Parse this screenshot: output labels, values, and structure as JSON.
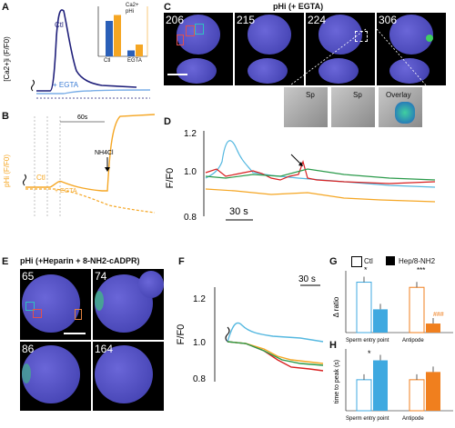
{
  "panels": {
    "A": {
      "label": "A",
      "ylabel": "[Ca2+]i (F/F0)",
      "ctl": "Ctl",
      "egta": "+ EGTA",
      "inset": {
        "legend": [
          "Ca2+",
          "pHi"
        ],
        "ylabel_left": "[Ca2+]i (F/F0)",
        "ylabel_right": "pHi (F/F0)",
        "cats": [
          "Ctl",
          "EGTA"
        ]
      }
    },
    "B": {
      "label": "B",
      "ylabel": "pHi (F/F0)",
      "ctl": "Ctl",
      "egta": "+ EGTA",
      "time": "60s",
      "nh4cl": "NH4Cl"
    },
    "C": {
      "label": "C",
      "title": "pHi (+ EGTA)",
      "frames": [
        "206",
        "215",
        "224",
        "306"
      ],
      "zoom": [
        "Sp",
        "Sp",
        "Overlay"
      ]
    },
    "D": {
      "label": "D",
      "ylabel": "F/F0",
      "yticks": [
        "1.2",
        "1.0",
        "0.8"
      ],
      "scale": "30 s"
    },
    "E": {
      "label": "E",
      "title": "pHi (+Heparin + 8-NH2-cADPR)",
      "frames": [
        "65",
        "74",
        "86",
        "164"
      ]
    },
    "F": {
      "label": "F",
      "ylabel": "F/F0",
      "yticks": [
        "1.2",
        "1.0",
        "0.8"
      ],
      "scale": "30 s"
    },
    "G": {
      "label": "G",
      "legend": [
        "Ctl",
        "Hep/8-NH2"
      ],
      "ylabel": "Δ ratio",
      "cats": [
        "Sperm entry point",
        "Antipode"
      ],
      "sig": [
        "*",
        "***",
        "###"
      ]
    },
    "H": {
      "label": "H",
      "ylabel": "time to peak (s)",
      "cats": [
        "Sperm entry point",
        "Antipode"
      ],
      "sig": [
        "*"
      ]
    }
  },
  "colors": {
    "blue": "#1f1f7a",
    "orange": "#f5a623",
    "ctl_bar": "#ffffff",
    "treat_bar_G": "#3fa9e0",
    "treat_bar_G2": "#f07f1e"
  },
  "chart_data": [
    {
      "type": "bar",
      "panel": "G",
      "categories": [
        "Sperm entry point",
        "Antipode"
      ],
      "series": [
        {
          "name": "Ctl",
          "values": [
            0.39,
            0.35
          ]
        },
        {
          "name": "Hep/8-NH2",
          "values": [
            0.18,
            0.07
          ]
        }
      ],
      "ylabel": "Δ ratio"
    },
    {
      "type": "bar",
      "panel": "H",
      "categories": [
        "Sperm entry point",
        "Antipode"
      ],
      "series": [
        {
          "name": "Ctl",
          "values": [
            16,
            16
          ]
        },
        {
          "name": "Hep/8-NH2",
          "values": [
            26,
            20
          ]
        }
      ],
      "ylabel": "time to peak (s)"
    },
    {
      "type": "bar",
      "panel": "A-inset",
      "categories": [
        "Ctl",
        "EGTA"
      ],
      "series": [
        {
          "name": "Ca2+",
          "values": [
            12,
            2
          ]
        },
        {
          "name": "pHi",
          "values": [
            14,
            4
          ]
        }
      ]
    }
  ]
}
